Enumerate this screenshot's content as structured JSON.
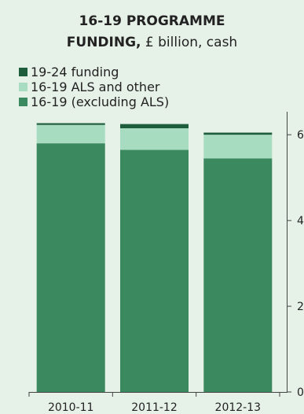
{
  "title": {
    "line1": "16-19 PROGRAMME",
    "line2_bold": "FUNDING,",
    "line2_rest": " £ billion, cash"
  },
  "colors": {
    "background": "#e6f1e8",
    "series_19_24": "#1f5e3d",
    "series_als": "#a8dcc0",
    "series_excl": "#3b8a5f",
    "axis": "#444444"
  },
  "chart_data": {
    "type": "bar",
    "stacked": true,
    "categories": [
      "2010-11",
      "2011-12",
      "2012-13"
    ],
    "series": [
      {
        "name": "16-19 (excluding ALS)",
        "values": [
          5.8,
          5.65,
          5.45
        ],
        "color": "#3b8a5f"
      },
      {
        "name": "16-19 ALS and other",
        "values": [
          0.43,
          0.5,
          0.55
        ],
        "color": "#a8dcc0"
      },
      {
        "name": "19-24 funding",
        "values": [
          0.04,
          0.1,
          0.05
        ],
        "color": "#1f5e3d"
      }
    ],
    "legend_order": [
      "19-24 funding",
      "16-19 ALS and other",
      "16-19 (excluding ALS)"
    ],
    "y_ticks": [
      "0",
      "2",
      "4",
      "6"
    ],
    "y_tick_values": [
      0,
      2,
      4,
      6
    ],
    "ylim": [
      0,
      6.5
    ],
    "y_axis_side": "right",
    "legend_position": "top-left",
    "grid": false
  }
}
